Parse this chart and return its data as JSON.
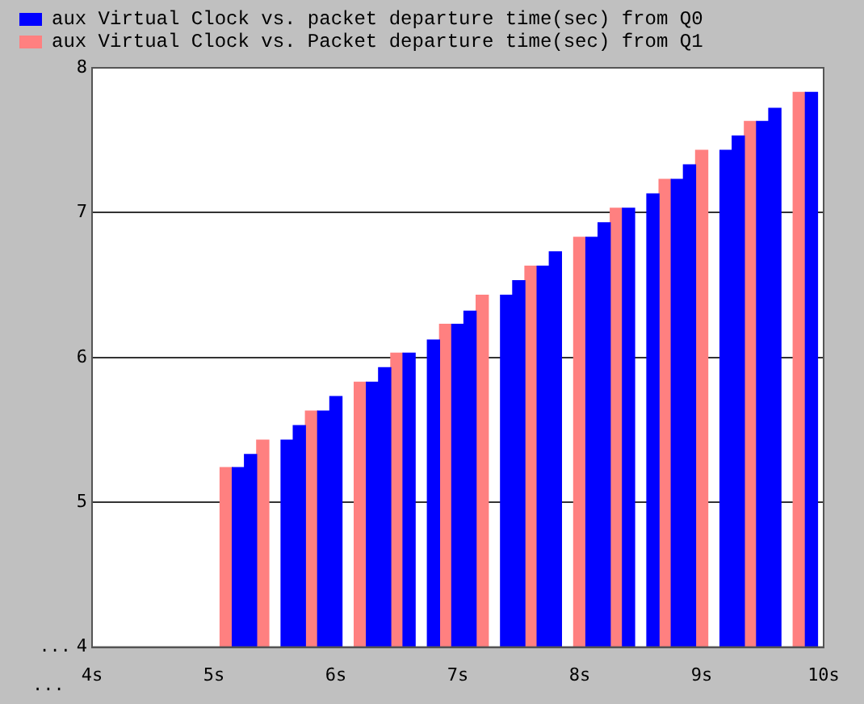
{
  "chart_data": {
    "type": "bar",
    "annotations": [
      "...",
      "..."
    ],
    "series": [
      {
        "name": "aux Virtual Clock vs. packet departure time(sec) from Q0",
        "color": "#0000ff",
        "x": [
          5.2,
          5.3,
          5.6,
          5.7,
          5.9,
          6.0,
          6.3,
          6.4,
          6.6,
          6.8,
          7.0,
          7.1,
          7.4,
          7.5,
          7.7,
          7.8,
          8.1,
          8.2,
          8.4,
          8.6,
          8.8,
          8.9,
          9.2,
          9.3,
          9.5,
          9.6,
          9.9
        ],
        "values": [
          5.24,
          5.33,
          5.43,
          5.53,
          5.63,
          5.73,
          5.83,
          5.93,
          6.03,
          6.12,
          6.23,
          6.32,
          6.43,
          6.53,
          6.63,
          6.73,
          6.83,
          6.93,
          7.03,
          7.13,
          7.23,
          7.33,
          7.43,
          7.53,
          7.63,
          7.72,
          7.83
        ]
      },
      {
        "name": "aux Virtual Clock vs. Packet departure time(sec) from Q1",
        "color": "#ff8080",
        "x": [
          5.1,
          5.4,
          5.8,
          6.2,
          6.5,
          6.9,
          7.2,
          7.6,
          8.0,
          8.3,
          8.7,
          9.0,
          9.4,
          9.8
        ],
        "values": [
          5.24,
          5.43,
          5.63,
          5.83,
          6.03,
          6.23,
          6.43,
          6.63,
          6.83,
          7.03,
          7.23,
          7.43,
          7.63,
          7.83
        ]
      }
    ],
    "xlim": [
      4,
      10
    ],
    "xticks": [
      {
        "value": 4,
        "label": "4s"
      },
      {
        "value": 5,
        "label": "5s"
      },
      {
        "value": 6,
        "label": "6s"
      },
      {
        "value": 7,
        "label": "7s"
      },
      {
        "value": 8,
        "label": "8s"
      },
      {
        "value": 9,
        "label": "9s"
      },
      {
        "value": 10,
        "label": "10s"
      }
    ],
    "ylim": [
      4,
      8
    ],
    "yticks": [
      4,
      5,
      6,
      7,
      8
    ],
    "grid": "y",
    "legend": "top left"
  }
}
